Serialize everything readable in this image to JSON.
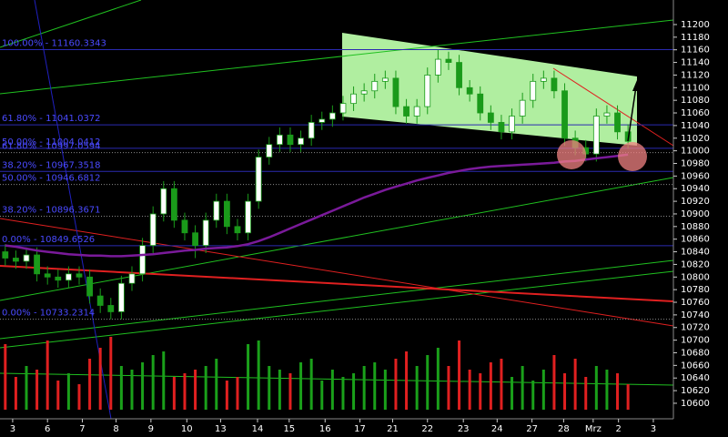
{
  "chart_data": {
    "type": "candlestick",
    "ylim": [
      10575.4,
      11238.9
    ],
    "yticks": [
      10600,
      10620,
      10640,
      10660,
      10680,
      10700,
      10720,
      10740,
      10760,
      10780,
      10800,
      10820,
      10840,
      10860,
      10880,
      10900,
      10920,
      10940,
      10960,
      10980,
      11000,
      11020,
      11040,
      11060,
      11080,
      11100,
      11120,
      11140,
      11160,
      11180,
      11200
    ],
    "xlim": [
      -0.5,
      63.3
    ],
    "xticks": [
      {
        "value": 0.7,
        "label": "3"
      },
      {
        "value": 4.0,
        "label": "6"
      },
      {
        "value": 7.3,
        "label": "7"
      },
      {
        "value": 10.5,
        "label": "8"
      },
      {
        "value": 13.8,
        "label": "9"
      },
      {
        "value": 17.2,
        "label": "10"
      },
      {
        "value": 20.4,
        "label": "13"
      },
      {
        "value": 23.9,
        "label": "14"
      },
      {
        "value": 26.9,
        "label": "15"
      },
      {
        "value": 30.3,
        "label": "16"
      },
      {
        "value": 33.6,
        "label": "17"
      },
      {
        "value": 36.7,
        "label": "21"
      },
      {
        "value": 40.0,
        "label": "22"
      },
      {
        "value": 43.4,
        "label": "23"
      },
      {
        "value": 46.6,
        "label": "24"
      },
      {
        "value": 49.9,
        "label": "27"
      },
      {
        "value": 52.9,
        "label": "28"
      },
      {
        "value": 55.7,
        "label": "Mrz"
      },
      {
        "value": 58.1,
        "label": "2"
      },
      {
        "value": 61.4,
        "label": "3"
      }
    ],
    "up_color": "#ffffff",
    "down_color": "#1a9a1a",
    "open": [
      10840,
      10830,
      10825,
      10835,
      10805,
      10800,
      10795,
      10805,
      10800,
      10770,
      10755,
      10745,
      10790,
      10805,
      10850,
      10900,
      10940,
      10890,
      10870,
      10850,
      10890,
      10920,
      10880,
      10870,
      10920,
      10990,
      11010,
      11025,
      11010,
      11020,
      11045,
      11050,
      11060,
      11075,
      11090,
      11095,
      11110,
      11115,
      11070,
      11055,
      11070,
      11120,
      11145,
      11140,
      11100,
      11090,
      11060,
      11045,
      11030,
      11055,
      11080,
      11110,
      11115,
      11095,
      11020,
      11005,
      10995,
      11055,
      11060,
      11030
    ],
    "high": [
      10852,
      10842,
      10847,
      10847,
      10817,
      10812,
      10817,
      10817,
      10812,
      10782,
      10767,
      10802,
      10817,
      10862,
      10912,
      10952,
      10952,
      10902,
      10882,
      10902,
      10932,
      10932,
      10892,
      10932,
      11002,
      11022,
      11037,
      11037,
      11032,
      11057,
      11062,
      11072,
      11087,
      11102,
      11107,
      11122,
      11127,
      11127,
      11082,
      11082,
      11132,
      11160,
      11157,
      11152,
      11112,
      11102,
      11072,
      11057,
      11067,
      11092,
      11122,
      11127,
      11127,
      11107,
      11032,
      11017,
      11067,
      11072,
      11072,
      11042
    ],
    "low": [
      10818,
      10813,
      10813,
      10793,
      10788,
      10783,
      10783,
      10788,
      10758,
      10743,
      10733,
      10733,
      10778,
      10793,
      10838,
      10888,
      10878,
      10858,
      10830,
      10838,
      10878,
      10868,
      10858,
      10858,
      10908,
      10978,
      10998,
      10998,
      10998,
      11008,
      11033,
      11038,
      11048,
      11063,
      11078,
      11083,
      11098,
      11058,
      11043,
      11043,
      11058,
      11108,
      11128,
      11088,
      11078,
      11048,
      11033,
      11018,
      11018,
      11043,
      11068,
      11098,
      11083,
      11008,
      10993,
      10983,
      10983,
      11043,
      11018,
      11003
    ],
    "close": [
      10830,
      10825,
      10835,
      10805,
      10800,
      10795,
      10805,
      10800,
      10770,
      10755,
      10745,
      10790,
      10805,
      10850,
      10900,
      10940,
      10890,
      10870,
      10850,
      10890,
      10920,
      10880,
      10870,
      10920,
      10990,
      11010,
      11025,
      11010,
      11020,
      11045,
      11050,
      11060,
      11075,
      11090,
      11095,
      11110,
      11115,
      11070,
      11055,
      11070,
      11120,
      11145,
      11140,
      11100,
      11090,
      11060,
      11045,
      11030,
      11055,
      11080,
      11110,
      11115,
      11095,
      11020,
      11005,
      10995,
      11055,
      11060,
      11030,
      11015
    ],
    "moving_average": {
      "color": "#7a1a9a",
      "values": [
        10850,
        10848,
        10845,
        10842,
        10840,
        10838,
        10836,
        10835,
        10834,
        10834,
        10833,
        10833,
        10834,
        10835,
        10836,
        10838,
        10840,
        10842,
        10843,
        10845,
        10846,
        10847,
        10849,
        10852,
        10857,
        10863,
        10870,
        10877,
        10884,
        10891,
        10898,
        10905,
        10912,
        10919,
        10926,
        10932,
        10938,
        10943,
        10948,
        10953,
        10957,
        10961,
        10965,
        10968,
        10971,
        10973,
        10975,
        10976,
        10977,
        10978,
        10979,
        10980,
        10981,
        10983,
        10984,
        10986,
        10988,
        10990,
        10992,
        10994
      ]
    },
    "volume": {
      "vlim": [
        0,
        100
      ],
      "up_color": "#1aa01a",
      "down_color": "#e02020",
      "values": [
        90,
        45,
        60,
        55,
        95,
        40,
        50,
        35,
        70,
        85,
        100,
        60,
        55,
        65,
        75,
        80,
        45,
        50,
        55,
        60,
        70,
        40,
        45,
        90,
        95,
        60,
        55,
        50,
        65,
        70,
        40,
        55,
        45,
        50,
        60,
        65,
        55,
        70,
        80,
        60,
        75,
        85,
        60,
        95,
        55,
        50,
        65,
        70,
        45,
        60,
        40,
        55,
        75,
        50,
        70,
        45,
        60,
        55,
        50,
        35
      ]
    },
    "fib_levels": [
      {
        "label": "100.00% - 11160.3343",
        "value": 11160.3343,
        "style": "solid"
      },
      {
        "label": "61.80% - 11041.0372",
        "value": 11041.0372,
        "style": "solid"
      },
      {
        "label": "50.00% - 11004.0412",
        "value": 11004.0412,
        "style": "solid"
      },
      {
        "label": "61.80% - 10997.0594",
        "value": 10997.0594,
        "style": "dotted"
      },
      {
        "label": "38.20% - 10967.3518",
        "value": 10967.3518,
        "style": "solid"
      },
      {
        "label": "50.00% - 10946.6812",
        "value": 10946.6812,
        "style": "dotted"
      },
      {
        "label": "38.20% - 10896.3671",
        "value": 10896.3671,
        "style": "dotted"
      },
      {
        "label": "0.00% - 10849.6526",
        "value": 10849.6526,
        "style": "solid"
      },
      {
        "label": "0.00% - 10733.2314",
        "value": 10733.2314,
        "style": "dotted"
      }
    ]
  }
}
